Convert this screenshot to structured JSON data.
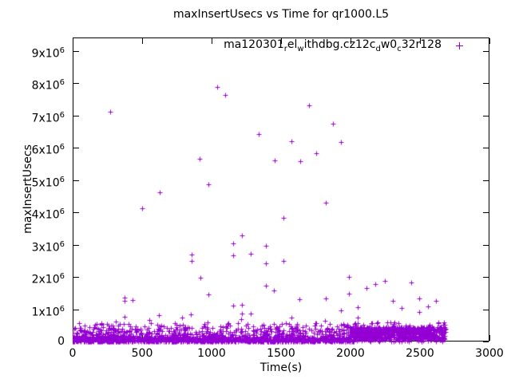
{
  "window": {
    "background": "#ffffff",
    "foreground": "#000000"
  },
  "chart_data": {
    "type": "scatter",
    "title": "maxInsertUsecs vs Time for qr1000.L5",
    "xlabel": "Time(s)",
    "ylabel": "maxInsertUsecs",
    "xlim": [
      0,
      3000
    ],
    "ylim": [
      0,
      9420000
    ],
    "grid": false,
    "legend_position": "top-right-inside",
    "xticks": [
      {
        "v": 0,
        "label": "0"
      },
      {
        "v": 500,
        "label": "500"
      },
      {
        "v": 1000,
        "label": "1000"
      },
      {
        "v": 1500,
        "label": "1500"
      },
      {
        "v": 2000,
        "label": "2000"
      },
      {
        "v": 2500,
        "label": "2500"
      },
      {
        "v": 3000,
        "label": "3000"
      }
    ],
    "yticks": [
      {
        "v": 0,
        "label": "0"
      },
      {
        "v": 1000000,
        "label": "1x10^6"
      },
      {
        "v": 2000000,
        "label": "2x10^6"
      },
      {
        "v": 3000000,
        "label": "3x10^6"
      },
      {
        "v": 4000000,
        "label": "4x10^6"
      },
      {
        "v": 5000000,
        "label": "5x10^6"
      },
      {
        "v": 6000000,
        "label": "6x10^6"
      },
      {
        "v": 7000000,
        "label": "7x10^6"
      },
      {
        "v": 8000000,
        "label": "8x10^6"
      },
      {
        "v": 9000000,
        "label": "9x10^6"
      }
    ],
    "series": [
      {
        "name": "ma120301_rel_withdbg.cz12c_dw0_c32r128",
        "label_segments": [
          {
            "t": "ma120301"
          },
          {
            "sub": "r"
          },
          {
            "t": "el"
          },
          {
            "sub": "w"
          },
          {
            "t": "ithdbg.cz12c"
          },
          {
            "sub": "d"
          },
          {
            "t": "w0"
          },
          {
            "sub": "c"
          },
          {
            "t": "32r128"
          }
        ],
        "marker": "plus",
        "color": "#9400D3",
        "time_range_s": [
          0,
          2685
        ],
        "outlier_points": [
          [
            270,
            7110000
          ],
          [
            1040,
            7880000
          ],
          [
            1098,
            7630000
          ],
          [
            1701,
            7330000
          ],
          [
            1874,
            6740000
          ],
          [
            1339,
            6440000
          ],
          [
            1575,
            6200000
          ],
          [
            1931,
            6170000
          ],
          [
            1753,
            5830000
          ],
          [
            914,
            5650000
          ],
          [
            1454,
            5620000
          ],
          [
            1638,
            5600000
          ],
          [
            977,
            4860000
          ],
          [
            627,
            4620000
          ],
          [
            1820,
            4300000
          ],
          [
            498,
            4120000
          ],
          [
            1516,
            3830000
          ],
          [
            1219,
            3280000
          ],
          [
            1155,
            3030000
          ],
          [
            1393,
            2960000
          ],
          [
            1280,
            2710000
          ],
          [
            857,
            2690000
          ],
          [
            1155,
            2680000
          ],
          [
            857,
            2490000
          ],
          [
            1516,
            2490000
          ],
          [
            1393,
            2430000
          ],
          [
            1990,
            2000000
          ],
          [
            921,
            1990000
          ],
          [
            2245,
            1890000
          ],
          [
            2437,
            1830000
          ],
          [
            2176,
            1770000
          ],
          [
            1393,
            1740000
          ],
          [
            2117,
            1660000
          ],
          [
            1448,
            1580000
          ],
          [
            1990,
            1490000
          ],
          [
            976,
            1470000
          ],
          [
            372,
            1370000
          ],
          [
            2494,
            1340000
          ],
          [
            1820,
            1330000
          ],
          [
            1632,
            1320000
          ],
          [
            431,
            1280000
          ],
          [
            372,
            1270000
          ],
          [
            2306,
            1270000
          ],
          [
            2617,
            1270000
          ],
          [
            1221,
            1130000
          ],
          [
            1155,
            1110000
          ],
          [
            2556,
            1080000
          ],
          [
            2054,
            1070000
          ],
          [
            2368,
            1030000
          ],
          [
            1931,
            960000
          ],
          [
            2494,
            910000
          ],
          [
            1219,
            870000
          ],
          [
            1280,
            860000
          ],
          [
            851,
            840000
          ],
          [
            619,
            810000
          ],
          [
            373,
            770000
          ],
          [
            2054,
            750000
          ],
          [
            1573,
            740000
          ],
          [
            787,
            730000
          ],
          [
            1214,
            700000
          ],
          [
            552,
            670000
          ],
          [
            1816,
            640000
          ],
          [
            310,
            620000
          ],
          [
            970,
            590000
          ]
        ],
        "dense_bands": [
          {
            "t0": 0,
            "t1": 2000,
            "count": 1500,
            "dist": "exp",
            "scale": 110000,
            "max": 430000
          },
          {
            "t0": 0,
            "t1": 2000,
            "count": 170,
            "dist": "uniform",
            "vmin": 280000,
            "vmax": 580000
          },
          {
            "t0": 0,
            "t1": 2000,
            "count": 30,
            "dist": "uniform",
            "vmin": 0,
            "vmax": 30000
          },
          {
            "t0": 2000,
            "t1": 2685,
            "count": 750,
            "dist": "uniform",
            "vmin": 70000,
            "vmax": 450000
          },
          {
            "t0": 2000,
            "t1": 2685,
            "count": 60,
            "dist": "uniform",
            "vmin": 0,
            "vmax": 80000
          },
          {
            "t0": 2000,
            "t1": 2685,
            "count": 30,
            "dist": "uniform",
            "vmin": 450000,
            "vmax": 600000
          }
        ],
        "random_seed": 1337
      }
    ]
  }
}
